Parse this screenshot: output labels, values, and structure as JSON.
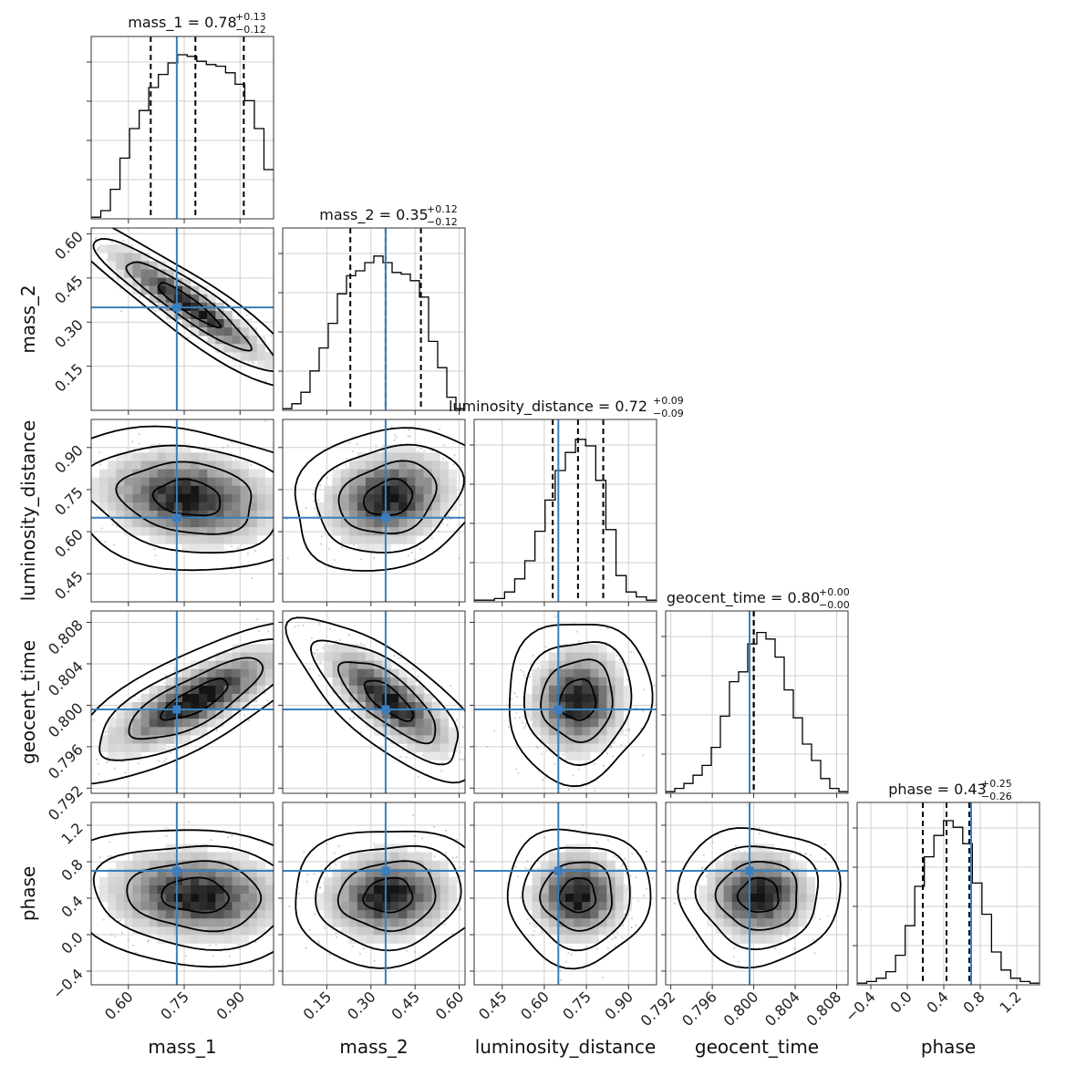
{
  "figure": {
    "title": "",
    "truth_color": "#3a7ebf",
    "hist_color": "#000000",
    "density_color": "#000000"
  },
  "chart_data": {
    "type": "corner",
    "parameters": [
      {
        "name": "mass_1",
        "label": "mass_1",
        "range": [
          0.5,
          0.99
        ],
        "ticks": [
          0.6,
          0.75,
          0.9
        ],
        "tick_labels": [
          "0.60",
          "0.75",
          "0.90"
        ],
        "truth": 0.73,
        "median": 0.78,
        "plus": 0.13,
        "minus": 0.12,
        "title_main": "mass_1 = 0.78",
        "title_sup": "+0.13",
        "title_sub": "−0.12",
        "hist": [
          0.01,
          0.05,
          0.18,
          0.37,
          0.55,
          0.66,
          0.8,
          0.88,
          0.95,
          1.0,
          0.99,
          0.96,
          0.94,
          0.93,
          0.89,
          0.82,
          0.72,
          0.55,
          0.3
        ],
        "hist_range": [
          0.5,
          0.99
        ]
      },
      {
        "name": "mass_2",
        "label": "mass_2",
        "range": [
          0.0,
          0.62
        ],
        "ticks": [
          0.15,
          0.3,
          0.45,
          0.6
        ],
        "tick_labels": [
          "0.15",
          "0.30",
          "0.45",
          "0.60"
        ],
        "truth": 0.35,
        "median": 0.35,
        "plus": 0.12,
        "minus": 0.12,
        "title_main": "mass_2 = 0.35",
        "title_sup": "+0.12",
        "title_sub": "−0.12",
        "hist": [
          0.01,
          0.04,
          0.11,
          0.24,
          0.38,
          0.53,
          0.71,
          0.82,
          0.85,
          0.9,
          0.94,
          0.9,
          0.84,
          0.83,
          0.79,
          0.69,
          0.42,
          0.26,
          0.08,
          0.01
        ],
        "hist_range": [
          0.0,
          0.62
        ]
      },
      {
        "name": "luminosity_distance",
        "label": "luminosity_distance",
        "range": [
          0.35,
          1.0
        ],
        "ticks": [
          0.45,
          0.6,
          0.75,
          0.9
        ],
        "tick_labels": [
          "0.45",
          "0.60",
          "0.75",
          "0.90"
        ],
        "truth": 0.65,
        "median": 0.72,
        "plus": 0.09,
        "minus": 0.09,
        "title_main": "luminosity_distance = 0.72",
        "title_sup": "+0.09",
        "title_sub": "−0.09",
        "hist": [
          0.01,
          0.01,
          0.02,
          0.06,
          0.14,
          0.25,
          0.43,
          0.62,
          0.8,
          0.91,
          0.99,
          0.95,
          0.74,
          0.44,
          0.16,
          0.06,
          0.03,
          0.01
        ],
        "hist_range": [
          0.35,
          1.0
        ]
      },
      {
        "name": "geocent_time",
        "label": "geocent_time",
        "range": [
          0.7915,
          0.8091
        ],
        "ticks": [
          0.792,
          0.796,
          0.8,
          0.804,
          0.808
        ],
        "tick_labels": [
          "0.792",
          "0.796",
          "0.800",
          "0.804",
          "0.808"
        ],
        "truth": 0.7996,
        "median": 0.8,
        "plus": 0.0,
        "minus": 0.0,
        "title_main": "geocent_time = 0.80",
        "title_sup": "+0.00",
        "title_sub": "−0.00",
        "hist": [
          0.01,
          0.03,
          0.06,
          0.11,
          0.17,
          0.28,
          0.47,
          0.68,
          0.74,
          0.91,
          0.98,
          0.94,
          0.83,
          0.63,
          0.46,
          0.3,
          0.2,
          0.09,
          0.03,
          0.01
        ],
        "hist_range": [
          0.7915,
          0.8091
        ]
      },
      {
        "name": "phase",
        "label": "phase",
        "range": [
          -0.55,
          1.45
        ],
        "ticks": [
          -0.4,
          0.0,
          0.4,
          0.8,
          1.2
        ],
        "tick_labels": [
          "−0.4",
          "0.0",
          "0.4",
          "0.8",
          "1.2"
        ],
        "truth": 0.7,
        "median": 0.43,
        "plus": 0.25,
        "minus": 0.26,
        "title_main": "phase = 0.43",
        "title_sup": "+0.25",
        "title_sub": "−0.26",
        "hist": [
          0.01,
          0.02,
          0.04,
          0.08,
          0.18,
          0.36,
          0.6,
          0.78,
          0.91,
          1.0,
          0.96,
          0.86,
          0.62,
          0.43,
          0.2,
          0.09,
          0.04,
          0.02,
          0.01
        ],
        "hist_range": [
          -0.55,
          1.45
        ]
      }
    ],
    "pairs": [
      {
        "x": "mass_1",
        "y": "mass_2",
        "center": [
          0.76,
          0.36
        ],
        "sd": [
          0.11,
          0.1
        ],
        "rho": -0.92
      },
      {
        "x": "mass_1",
        "y": "luminosity_distance",
        "center": [
          0.76,
          0.72
        ],
        "sd": [
          0.12,
          0.085
        ],
        "rho": -0.18
      },
      {
        "x": "mass_2",
        "y": "luminosity_distance",
        "center": [
          0.36,
          0.72
        ],
        "sd": [
          0.11,
          0.085
        ],
        "rho": 0.2
      },
      {
        "x": "mass_1",
        "y": "geocent_time",
        "center": [
          0.78,
          0.8005
        ],
        "sd": [
          0.12,
          0.0026
        ],
        "rho": 0.78
      },
      {
        "x": "mass_2",
        "y": "geocent_time",
        "center": [
          0.36,
          0.8005
        ],
        "sd": [
          0.11,
          0.0026
        ],
        "rho": -0.75
      },
      {
        "x": "luminosity_distance",
        "y": "geocent_time",
        "center": [
          0.72,
          0.8005
        ],
        "sd": [
          0.085,
          0.0026
        ],
        "rho": 0.05
      },
      {
        "x": "mass_1",
        "y": "phase",
        "center": [
          0.78,
          0.43
        ],
        "sd": [
          0.12,
          0.25
        ],
        "rho": -0.1
      },
      {
        "x": "mass_2",
        "y": "phase",
        "center": [
          0.36,
          0.43
        ],
        "sd": [
          0.11,
          0.25
        ],
        "rho": 0.08
      },
      {
        "x": "luminosity_distance",
        "y": "phase",
        "center": [
          0.72,
          0.43
        ],
        "sd": [
          0.085,
          0.25
        ],
        "rho": 0.0
      },
      {
        "x": "geocent_time",
        "y": "phase",
        "center": [
          0.8005,
          0.43
        ],
        "sd": [
          0.0026,
          0.25
        ],
        "rho": 0.0
      }
    ],
    "contour_levels_sigma": [
      0.5,
      1.0,
      1.5,
      2.0
    ],
    "grid": true,
    "truth_markers": true
  }
}
